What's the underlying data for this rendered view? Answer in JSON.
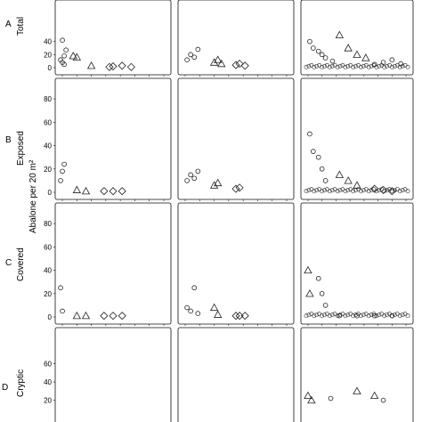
{
  "figure": {
    "row_letters": [
      "A",
      "B",
      "C",
      "D"
    ],
    "row_titles": [
      "Total",
      "Exposed",
      "Covered",
      "Cryptic"
    ],
    "shared_ylabel": "Abalone per 20 m²"
  },
  "chart_data": {
    "type": "scatter",
    "grid": "off",
    "ylim": [
      0,
      90
    ],
    "row_ticks": [
      [
        "0",
        "20",
        "40"
      ],
      [
        "0",
        "20",
        "40",
        "60",
        "80"
      ],
      [
        "0",
        "20",
        "40",
        "60",
        "80"
      ],
      [
        "20",
        "40",
        "60"
      ]
    ],
    "markers": [
      "circle",
      "triangle",
      "diamond"
    ],
    "panels": [
      {
        "row": 0,
        "col": 0,
        "clusters": [
          {
            "marker": "circle",
            "x": [
              1,
              2,
              3,
              4
            ],
            "y": [
              12,
              8,
              18,
              27
            ]
          },
          {
            "marker": "circle",
            "x": [
              2,
              3
            ],
            "y": [
              42,
              5
            ]
          },
          {
            "marker": "triangle",
            "x": [
              8,
              10,
              18
            ],
            "y": [
              18,
              16,
              3
            ]
          },
          {
            "marker": "diamond",
            "x": [
              28,
              30,
              35,
              40
            ],
            "y": [
              1,
              2,
              3,
              1
            ]
          }
        ]
      },
      {
        "row": 0,
        "col": 1,
        "clusters": [
          {
            "marker": "circle",
            "x": [
              3,
              5,
              7,
              9
            ],
            "y": [
              12,
              20,
              16,
              28
            ]
          },
          {
            "marker": "triangle",
            "x": [
              18,
              20,
              22
            ],
            "y": [
              8,
              12,
              6
            ]
          },
          {
            "marker": "diamond",
            "x": [
              30,
              32,
              35
            ],
            "y": [
              4,
              6,
              3
            ]
          }
        ]
      },
      {
        "row": 0,
        "col": 2,
        "clusters": [
          {
            "marker": "circle",
            "x": [
              3,
              5,
              8,
              10,
              12,
              16
            ],
            "y": [
              40,
              30,
              25,
              20,
              15,
              10
            ]
          },
          {
            "marker": "triangle",
            "x": [
              20,
              25,
              30,
              35
            ],
            "y": [
              50,
              30,
              20,
              15
            ]
          },
          {
            "marker": "circle",
            "x": [
              40,
              45,
              50,
              55
            ],
            "y": [
              5,
              8,
              12,
              6
            ]
          }
        ]
      },
      {
        "row": 1,
        "col": 0,
        "clusters": [
          {
            "marker": "circle",
            "x": [
              1,
              2,
              3
            ],
            "y": [
              10,
              18,
              24
            ]
          },
          {
            "marker": "triangle",
            "x": [
              10,
              15
            ],
            "y": [
              2,
              1
            ]
          },
          {
            "marker": "diamond",
            "x": [
              25,
              30,
              35
            ],
            "y": [
              1,
              1,
              1
            ]
          }
        ]
      },
      {
        "row": 1,
        "col": 1,
        "clusters": [
          {
            "marker": "circle",
            "x": [
              3,
              5,
              7,
              9
            ],
            "y": [
              10,
              15,
              12,
              18
            ]
          },
          {
            "marker": "triangle",
            "x": [
              18,
              20
            ],
            "y": [
              6,
              8
            ]
          },
          {
            "marker": "diamond",
            "x": [
              30,
              32
            ],
            "y": [
              3,
              4
            ]
          }
        ]
      },
      {
        "row": 1,
        "col": 2,
        "clusters": [
          {
            "marker": "circle",
            "x": [
              3,
              5,
              8,
              10,
              12
            ],
            "y": [
              50,
              35,
              30,
              20,
              10
            ]
          },
          {
            "marker": "triangle",
            "x": [
              20,
              25,
              30
            ],
            "y": [
              15,
              10,
              6
            ]
          },
          {
            "marker": "diamond",
            "x": [
              40,
              45,
              50
            ],
            "y": [
              3,
              2,
              1
            ]
          }
        ]
      },
      {
        "row": 2,
        "col": 0,
        "clusters": [
          {
            "marker": "circle",
            "x": [
              1,
              2
            ],
            "y": [
              25,
              5
            ]
          },
          {
            "marker": "triangle",
            "x": [
              10,
              15
            ],
            "y": [
              1,
              1
            ]
          },
          {
            "marker": "diamond",
            "x": [
              25,
              30,
              35
            ],
            "y": [
              1,
              1,
              1
            ]
          }
        ]
      },
      {
        "row": 2,
        "col": 1,
        "clusters": [
          {
            "marker": "circle",
            "x": [
              3,
              5,
              7,
              9
            ],
            "y": [
              8,
              5,
              25,
              3
            ]
          },
          {
            "marker": "triangle",
            "x": [
              18,
              20
            ],
            "y": [
              8,
              2
            ]
          },
          {
            "marker": "diamond",
            "x": [
              30,
              32,
              35
            ],
            "y": [
              1,
              1,
              1
            ]
          }
        ]
      },
      {
        "row": 2,
        "col": 2,
        "clusters": [
          {
            "marker": "triangle",
            "x": [
              2,
              3
            ],
            "y": [
              40,
              20
            ]
          },
          {
            "marker": "circle",
            "x": [
              8,
              10,
              12
            ],
            "y": [
              33,
              20,
              10
            ]
          },
          {
            "marker": "circle",
            "x": [
              20,
              30,
              40,
              50
            ],
            "y": [
              1,
              1,
              1,
              1
            ]
          }
        ]
      },
      {
        "row": 3,
        "col": 0,
        "clusters": []
      },
      {
        "row": 3,
        "col": 1,
        "clusters": []
      },
      {
        "row": 3,
        "col": 2,
        "clusters": [
          {
            "marker": "triangle",
            "x": [
              2,
              4,
              30,
              40
            ],
            "y": [
              25,
              20,
              30,
              25
            ]
          },
          {
            "marker": "circle",
            "x": [
              15,
              45
            ],
            "y": [
              22,
              20
            ]
          }
        ]
      }
    ]
  }
}
